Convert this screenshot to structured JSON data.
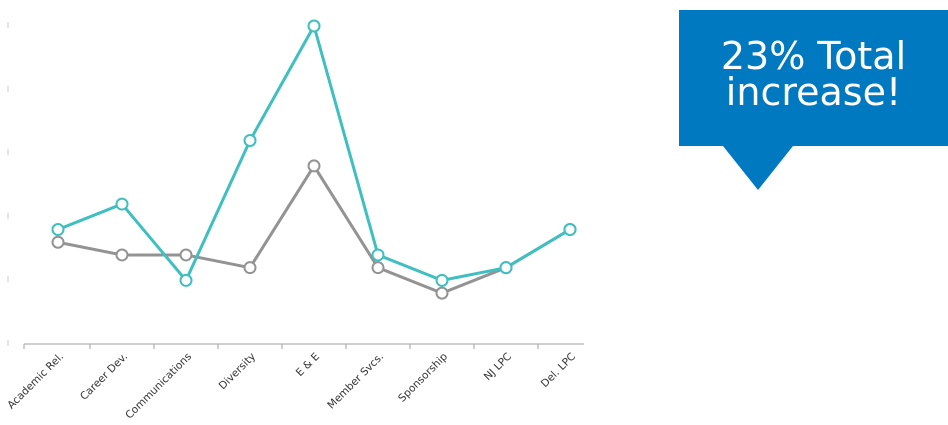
{
  "callout": {
    "text": "23% Total increase!",
    "color": "#0079c1"
  },
  "chart_data": {
    "type": "line",
    "categories": [
      "Academic Rel.",
      "Career Dev.",
      "Communications",
      "Diversity",
      "E & E",
      "Member Svcs.",
      "Sponsorship",
      "NJ LPC",
      "Del. LPC"
    ],
    "ylim": [
      0,
      5
    ],
    "y_ticks": [
      0,
      1,
      2,
      3,
      4,
      5
    ],
    "grid": false,
    "series": [
      {
        "color": "#939393",
        "values": [
          1.6,
          1.4,
          1.4,
          1.2,
          2.8,
          1.2,
          0.8,
          1.2,
          1.8
        ]
      },
      {
        "color": "#3fbfbf",
        "values": [
          1.8,
          2.2,
          1.0,
          3.2,
          5.0,
          1.4,
          1.0,
          1.2,
          1.8
        ]
      }
    ]
  }
}
